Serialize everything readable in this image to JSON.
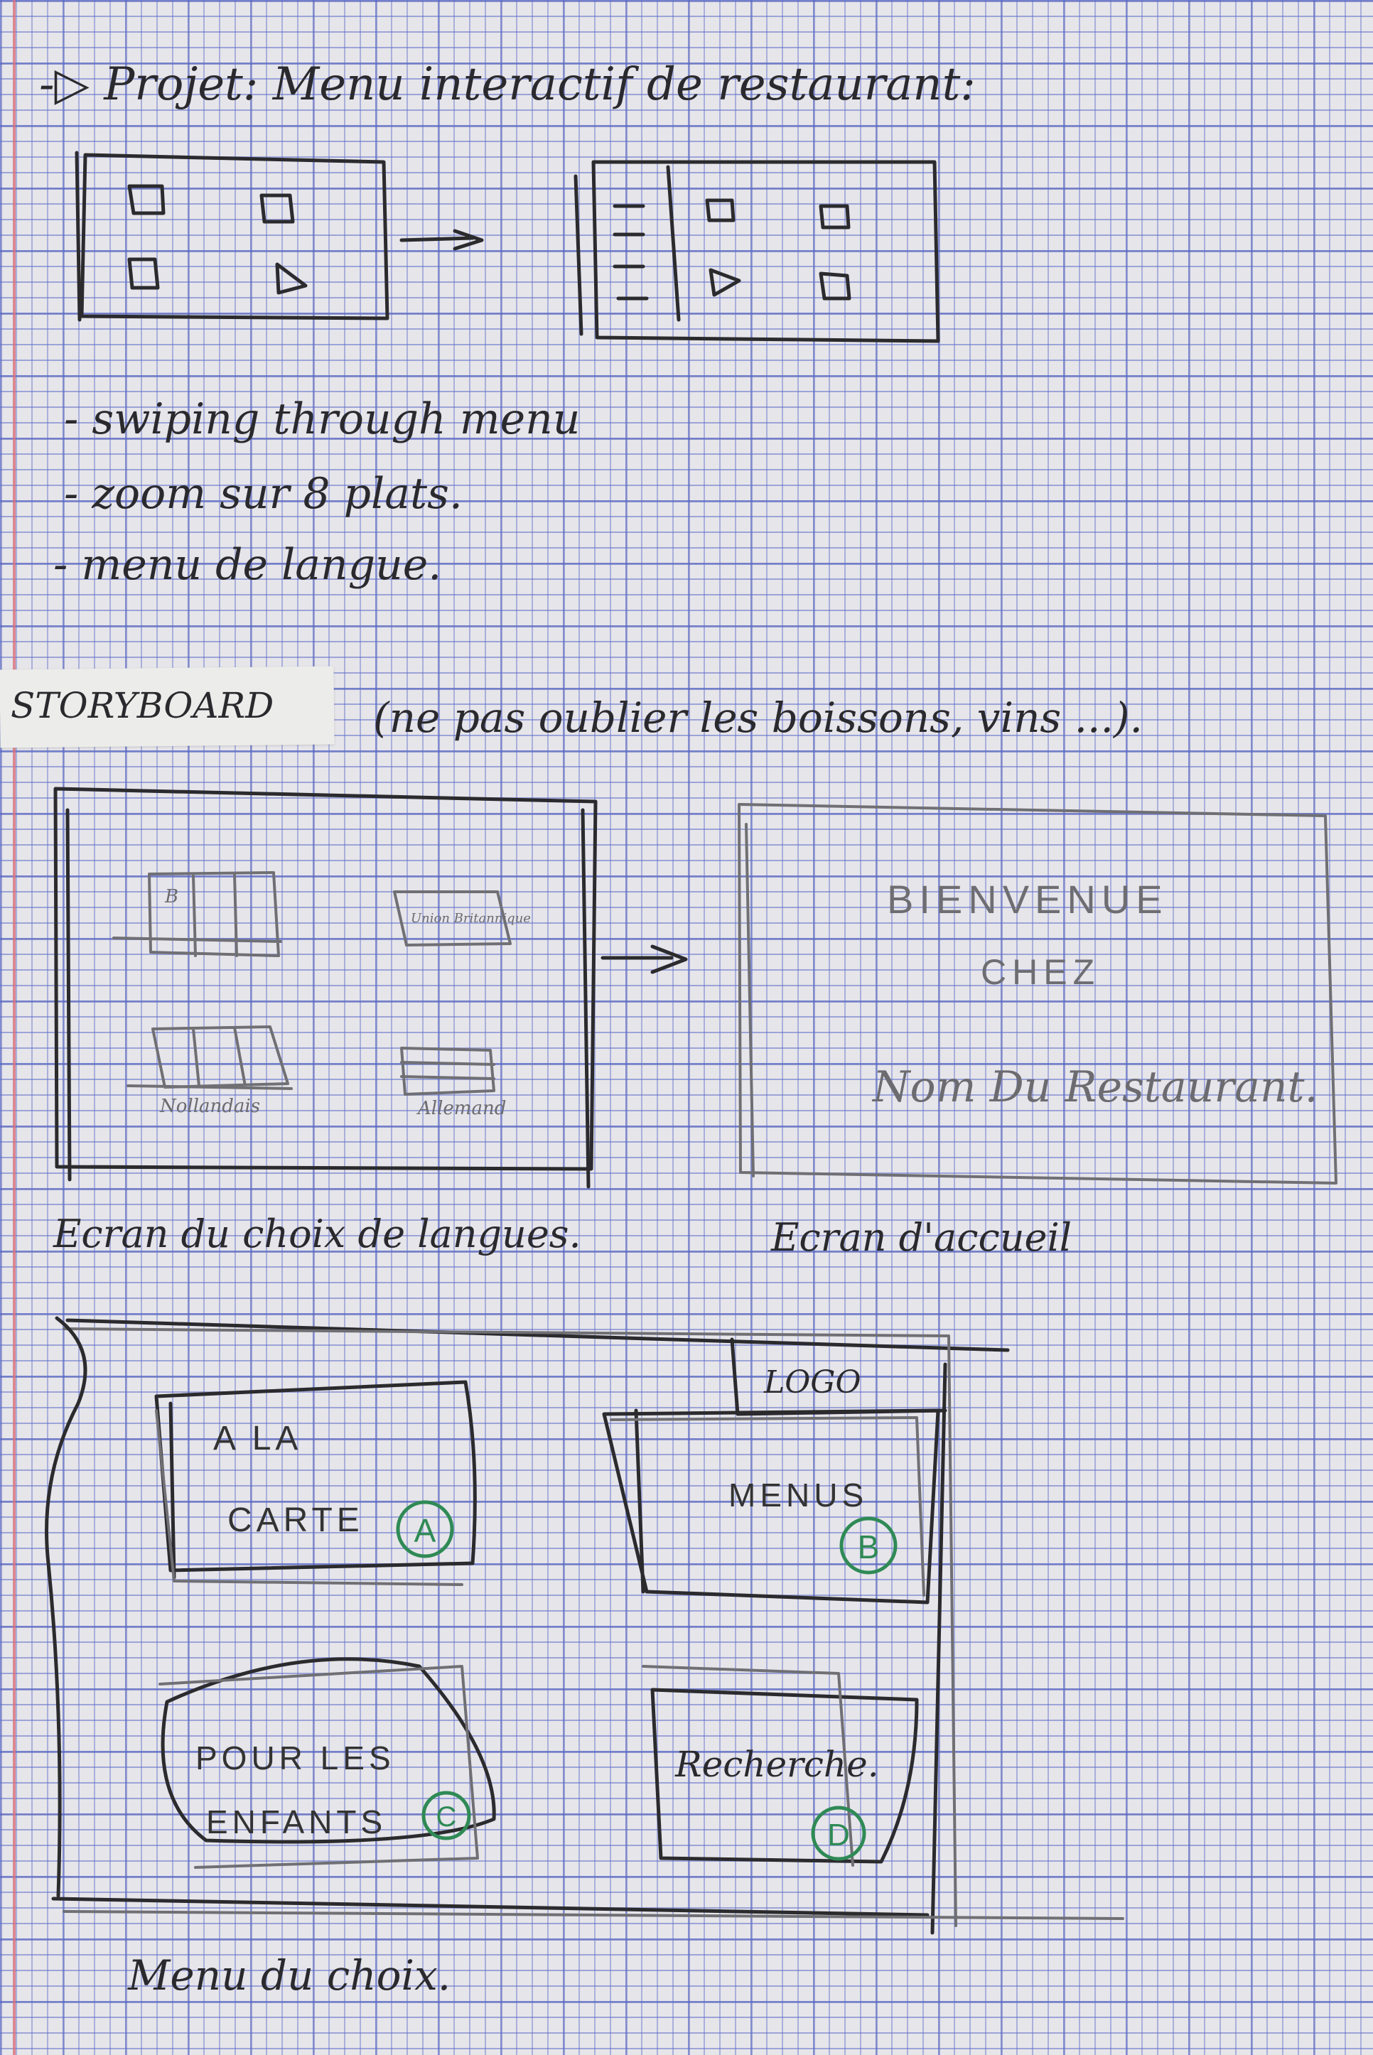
{
  "title": "-▷ Projet: Menu interactif de restaurant:",
  "notes": [
    "- swiping through menu",
    "- zoom sur 8 plats.",
    "- menu de langue."
  ],
  "storyboard": {
    "label": "STORYBOARD",
    "reminder": "(ne pas oublier les boissons, vins ...)."
  },
  "language_screen": {
    "caption": "Ecran du choix de langues.",
    "flags": [
      {
        "label": "B"
      },
      {
        "label": "Union Britannique"
      },
      {
        "label": "Nollandais"
      },
      {
        "label": "Allemand"
      }
    ]
  },
  "welcome_screen": {
    "caption": "Ecran d'accueil",
    "line1": "BIENVENUE",
    "line2": "CHEZ",
    "line3": "Nom Du Restaurant."
  },
  "choice_menu": {
    "caption": "Menu du choix.",
    "logo": "LOGO",
    "options": [
      {
        "label_line1": "A LA",
        "label_line2": "CARTE",
        "badge": "A"
      },
      {
        "label_line1": "MENUS",
        "label_line2": "",
        "badge": "B"
      },
      {
        "label_line1": "POUR LES",
        "label_line2": "ENFANTS",
        "badge": "C"
      },
      {
        "label_line1": "Recherche.",
        "label_line2": "",
        "badge": "D"
      }
    ]
  },
  "colors": {
    "ink": "#2b2b2e",
    "pencil": "#6f6f74",
    "green": "#2f8a55",
    "grid": "#5f6ec8",
    "margin": "#d9707a"
  }
}
